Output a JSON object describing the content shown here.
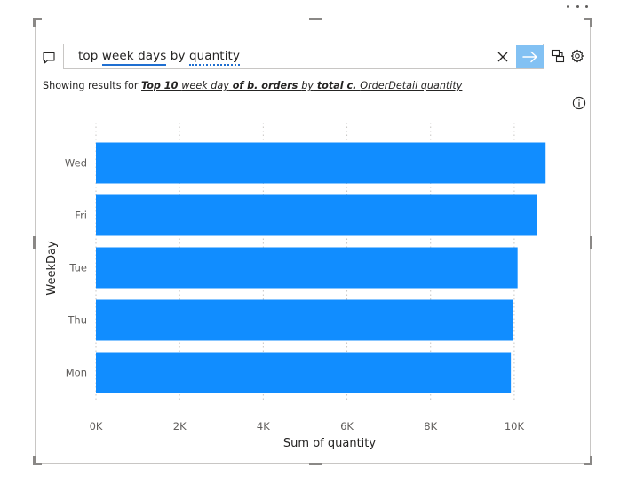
{
  "qna": {
    "query_words": [
      "top",
      "week days",
      "by",
      "quantity"
    ],
    "showing_prefix": "Showing results for",
    "interpretation": {
      "p1": "Top 10 ",
      "p2": "week day",
      "p3": " of b. orders ",
      "p4": "by",
      "p5": " total c. ",
      "p6": "OrderDetail quantity"
    }
  },
  "icons": {
    "more": "more-options-icon",
    "comment": "comment-icon",
    "clear": "close-icon",
    "submit": "arrow-right-icon",
    "insert": "turn-into-visual-icon",
    "settings": "gear-icon",
    "info": "info-icon"
  },
  "colors": {
    "bar": "#118dff",
    "submit_bg": "#82c1f3",
    "underline": "#1f6fd1"
  },
  "chart_data": {
    "type": "bar",
    "orientation": "horizontal",
    "categories": [
      "Wed",
      "Fri",
      "Tue",
      "Thu",
      "Mon"
    ],
    "values": [
      10750,
      10540,
      10080,
      9970,
      9920
    ],
    "xlabel": "Sum of quantity",
    "ylabel": "WeekDay",
    "xlim": [
      0,
      11000
    ],
    "xticks": [
      0,
      2000,
      4000,
      6000,
      8000,
      10000
    ],
    "xtick_labels": [
      "0K",
      "2K",
      "4K",
      "6K",
      "8K",
      "10K"
    ],
    "grid": "vertical dotted"
  }
}
